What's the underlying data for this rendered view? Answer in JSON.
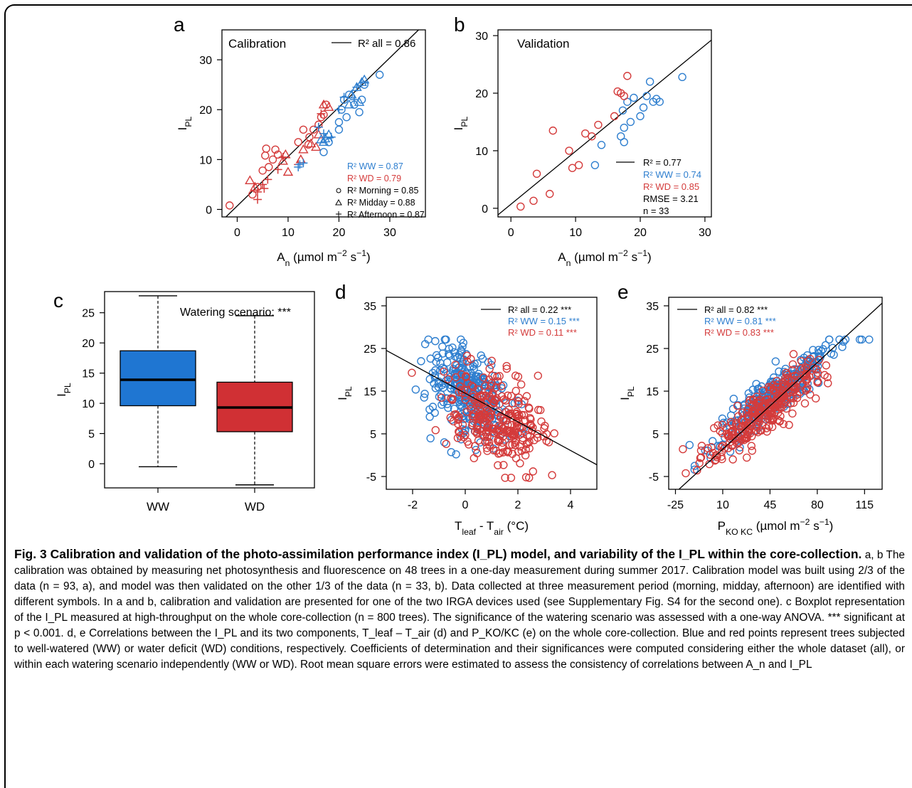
{
  "colors": {
    "ww": "#2f7fcf",
    "wd": "#d43b3b",
    "ww_box": "#1f76d2",
    "wd_box": "#d03034",
    "line": "#000000"
  },
  "panels": {
    "a": {
      "letter": "a",
      "chart_data": {
        "type": "scatter",
        "title": "Calibration",
        "xlabel": "A_n (µmol m^-2 s^-1)",
        "ylabel": "I_PL",
        "xlim": [
          -3,
          37
        ],
        "ylim": [
          -1.5,
          36
        ],
        "xticks": [
          0,
          10,
          20,
          30
        ],
        "yticks": [
          0,
          10,
          20,
          30
        ],
        "fit_line": {
          "intercept": 0.7,
          "slope": 0.99,
          "label": "R² all = 0.86"
        },
        "legend": [
          "R² WW = 0.87",
          "R² WD = 0.79",
          "R² Morning = 0.85",
          "R² Midday = 0.88",
          "R² Afternoon = 0.87"
        ],
        "series": [
          {
            "name": "WD Morning",
            "group": "wd",
            "marker": "circle",
            "points": [
              [
                -1.5,
                0.8
              ],
              [
                3,
                3
              ],
              [
                4,
                4.5
              ],
              [
                5,
                7.8
              ],
              [
                5.5,
                10.8
              ],
              [
                5.7,
                12.2
              ],
              [
                6.2,
                8.5
              ],
              [
                7,
                10
              ],
              [
                7.5,
                12
              ],
              [
                8,
                11
              ],
              [
                14,
                13
              ],
              [
                14.2,
                14.5
              ],
              [
                15,
                16
              ],
              [
                16,
                17
              ],
              [
                16.5,
                18.5
              ],
              [
                17,
                19
              ],
              [
                17.5,
                21
              ],
              [
                13,
                16
              ],
              [
                12,
                13.5
              ]
            ]
          },
          {
            "name": "WD Midday",
            "group": "wd",
            "marker": "triangle",
            "points": [
              [
                2.5,
                5.8
              ],
              [
                3.5,
                4.5
              ],
              [
                9,
                9.7
              ],
              [
                9.5,
                11
              ],
              [
                10,
                7.5
              ],
              [
                13,
                12
              ],
              [
                16,
                15
              ],
              [
                17,
                21
              ],
              [
                18,
                20.5
              ],
              [
                15.5,
                12.5
              ],
              [
                14.5,
                13.2
              ],
              [
                12.5,
                10
              ]
            ]
          },
          {
            "name": "WD Afternoon",
            "group": "wd",
            "marker": "plus",
            "points": [
              [
                4,
                2
              ],
              [
                4,
                3.5
              ],
              [
                5,
                5
              ],
              [
                5.3,
                4.2
              ],
              [
                6,
                6
              ],
              [
                8,
                8
              ],
              [
                9,
                10.5
              ],
              [
                12,
                9
              ],
              [
                16,
                16.5
              ],
              [
                16.5,
                19.2
              ]
            ]
          },
          {
            "name": "WW Morning",
            "group": "ww",
            "marker": "circle",
            "points": [
              [
                17,
                11.5
              ],
              [
                18,
                13.5
              ],
              [
                20,
                16
              ],
              [
                20,
                17.5
              ],
              [
                20.5,
                20
              ],
              [
                21,
                22
              ],
              [
                22,
                23
              ],
              [
                23,
                21
              ],
              [
                24,
                19.5
              ],
              [
                24.5,
                22
              ],
              [
                25,
                25
              ],
              [
                28,
                27
              ],
              [
                21.5,
                18.5
              ]
            ]
          },
          {
            "name": "WW Midday",
            "group": "ww",
            "marker": "triangle",
            "points": [
              [
                17,
                13.5
              ],
              [
                17.3,
                14.2
              ],
              [
                18,
                15
              ],
              [
                22,
                21
              ],
              [
                22.5,
                23
              ],
              [
                23.5,
                24.5
              ],
              [
                24.5,
                25.5
              ],
              [
                25,
                26
              ],
              [
                24,
                21.5
              ],
              [
                16.5,
                14
              ]
            ]
          },
          {
            "name": "WW Afternoon",
            "group": "ww",
            "marker": "plus",
            "points": [
              [
                12,
                8.5
              ],
              [
                12.3,
                9
              ],
              [
                13,
                9.3
              ],
              [
                16,
                16.5
              ],
              [
                17,
                15.2
              ],
              [
                18.5,
                14.5
              ],
              [
                20,
                20
              ],
              [
                21,
                22.5
              ],
              [
                23,
                22
              ],
              [
                23.5,
                24.5
              ]
            ]
          }
        ]
      }
    },
    "b": {
      "letter": "b",
      "chart_data": {
        "type": "scatter",
        "title": "Validation",
        "xlabel": "A_n (µmol m^-2 s^-1)",
        "ylabel": "I_PL",
        "xlim": [
          -2,
          31
        ],
        "ylim": [
          -1.5,
          31
        ],
        "xticks": [
          0,
          10,
          20,
          30
        ],
        "yticks": [
          0,
          10,
          20,
          30
        ],
        "fit_line": {
          "intercept": 0.7,
          "slope": 0.92
        },
        "legend": [
          "R² = 0.77",
          "R² WW = 0.74",
          "R² WD = 0.85",
          "RMSE = 3.21",
          "n = 33"
        ],
        "series": [
          {
            "name": "WW",
            "group": "ww",
            "points": [
              [
                13,
                7.5
              ],
              [
                14,
                11
              ],
              [
                17,
                12.5
              ],
              [
                17.5,
                14
              ],
              [
                17.5,
                11.5
              ],
              [
                18,
                18.5
              ],
              [
                18.5,
                15
              ],
              [
                19,
                19.2
              ],
              [
                20,
                16
              ],
              [
                20.5,
                17.5
              ],
              [
                21,
                19.5
              ],
              [
                21.5,
                22
              ],
              [
                22,
                18.5
              ],
              [
                22.5,
                19
              ],
              [
                23,
                18.5
              ],
              [
                26.5,
                22.8
              ],
              [
                17.3,
                17
              ]
            ]
          },
          {
            "name": "WD",
            "group": "wd",
            "points": [
              [
                1.5,
                0.3
              ],
              [
                3.5,
                1.3
              ],
              [
                4,
                6
              ],
              [
                6,
                2.5
              ],
              [
                6.5,
                13.5
              ],
              [
                9,
                10
              ],
              [
                9.5,
                7
              ],
              [
                10.5,
                7.5
              ],
              [
                11.5,
                13
              ],
              [
                12.5,
                12.5
              ],
              [
                13.5,
                14.5
              ],
              [
                16,
                16
              ],
              [
                16.5,
                20.3
              ],
              [
                17,
                20
              ],
              [
                17.5,
                19.5
              ],
              [
                18,
                23
              ]
            ]
          }
        ]
      }
    },
    "c": {
      "letter": "c",
      "chart_data": {
        "type": "box",
        "categories": [
          "WW",
          "WD"
        ],
        "ylabel": "I_PL",
        "ylim": [
          -4,
          28.5
        ],
        "yticks": [
          0,
          5,
          10,
          15,
          20,
          25
        ],
        "annotation": "Watering scenario: ***",
        "boxes": [
          {
            "name": "WW",
            "min": -0.5,
            "q1": 9.6,
            "median": 13.9,
            "q3": 18.7,
            "max": 27.8
          },
          {
            "name": "WD",
            "min": -3.5,
            "q1": 5.3,
            "median": 9.3,
            "q3": 13.5,
            "max": 24.5
          }
        ]
      }
    },
    "d": {
      "letter": "d",
      "chart_data": {
        "type": "scatter",
        "xlabel": "T_leaf - T_air (°C)",
        "ylabel": "I_PL",
        "xlim": [
          -3,
          5
        ],
        "ylim": [
          -8,
          37
        ],
        "xticks": [
          -2,
          0,
          2,
          4
        ],
        "yticks": [
          -5,
          5,
          15,
          25,
          35
        ],
        "fit_line": {
          "intercept": 14.5,
          "slope": -3.35
        },
        "legend": [
          "R² all = 0.22 ***",
          "R² WW = 0.15 ***",
          "R² WD = 0.11 ***"
        ],
        "cloud": {
          "ww_center": [
            0.1,
            15
          ],
          "ww_spread": [
            0.75,
            5.5
          ],
          "wd_center": [
            1.1,
            9
          ],
          "wd_spread": [
            0.9,
            5.5
          ],
          "n_each": 300
        }
      }
    },
    "e": {
      "letter": "e",
      "chart_data": {
        "type": "scatter",
        "xlabel": "P_KO KC (µmol m^-2 s^-1)",
        "ylabel": "I_PL",
        "xlim": [
          -30,
          128
        ],
        "ylim": [
          -8,
          37
        ],
        "xticks": [
          -25,
          10,
          45,
          80,
          115
        ],
        "yticks": [
          -5,
          5,
          15,
          25,
          35
        ],
        "fit_line": {
          "intercept": -1.5,
          "slope": 0.29
        },
        "legend": [
          "R² all = 0.82 ***",
          "R² WW = 0.81 ***",
          "R² WD = 0.83 ***"
        ],
        "cloud": {
          "ww_center": [
            48,
            14
          ],
          "ww_spread": [
            22,
            6
          ],
          "wd_center": [
            42,
            10.5
          ],
          "wd_spread": [
            22,
            6
          ],
          "n_each": 300
        }
      }
    }
  },
  "caption": {
    "title": "Fig. 3 Calibration and validation of the photo-assimilation performance index (I_PL) model, and variability of the I_PL within the core-collection.",
    "body": "a, b The calibration was obtained by measuring net photosynthesis and fluorescence on 48 trees in a one-day measurement during summer 2017.  Calibration model was built using 2/3 of the data (n = 93, a), and model was then validated on the other 1/3 of the data (n = 33, b). Data collected at three measurement period (morning, midday, afternoon) are identified with different symbols. In a and b, calibration and validation are presented for one of the two IRGA devices used (see Supplementary Fig. S4 for the second one). c Boxplot representation of the I_PL measured at high-throughput on the whole core-collection (n = 800 trees). The significance of the watering scenario was assessed with a one-way ANOVA. *** significant at p < 0.001. d, e Correlations between the I_PL and its two components, T_leaf – T_air (d) and P_KO/KC (e) on the whole core-collection. Blue and red points represent trees subjected to well-watered (WW) or water deficit (WD) conditions, respectively. Coefficients of determination and their significances were computed considering either the whole dataset (all), or within each watering scenario independently (WW or WD). Root mean square errors were estimated to assess the consistency of correlations between A_n and I_PL"
  }
}
